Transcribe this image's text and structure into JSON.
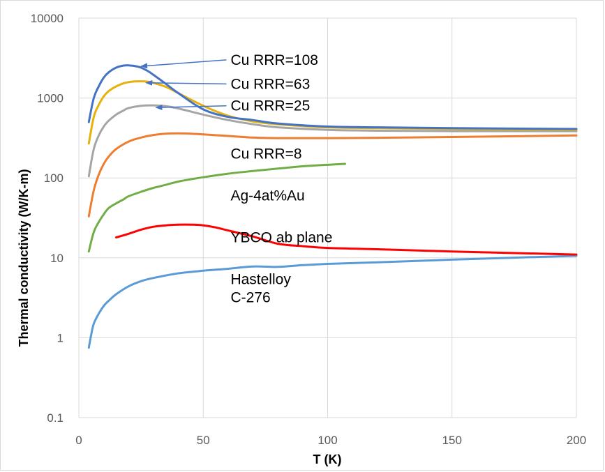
{
  "chart_data": {
    "type": "line",
    "title": "",
    "xlabel": "T (K)",
    "ylabel": "Thermal conductivity (W/K-m)",
    "xlim": [
      0,
      200
    ],
    "ylim": [
      0.1,
      10000
    ],
    "yscale": "log",
    "grid": true,
    "legend": "none",
    "x_ticks": [
      0,
      50,
      100,
      150,
      200
    ],
    "x_tick_labels": [
      "0",
      "50",
      "100",
      "150",
      "200"
    ],
    "y_ticks": [
      0.1,
      1,
      10,
      100,
      1000,
      10000
    ],
    "y_tick_labels": [
      "0.1",
      "1",
      "10",
      "100",
      "1000",
      "10000"
    ],
    "series": [
      {
        "key": "cu108",
        "color": "#4472C4",
        "x": [
          4,
          6,
          8,
          10,
          12,
          15,
          18,
          20,
          22,
          25,
          28,
          30,
          35,
          40,
          50,
          60,
          70,
          80,
          100,
          120,
          150,
          200
        ],
        "y": [
          500,
          1000,
          1400,
          1800,
          2100,
          2400,
          2550,
          2560,
          2530,
          2400,
          2150,
          1950,
          1500,
          1150,
          720,
          580,
          530,
          480,
          440,
          430,
          420,
          410
        ]
      },
      {
        "key": "cu63",
        "color": "#E5B10A",
        "x": [
          4,
          6,
          8,
          10,
          12,
          15,
          18,
          20,
          22,
          25,
          28,
          30,
          35,
          40,
          50,
          60,
          70,
          80,
          100,
          120,
          150,
          200
        ],
        "y": [
          270,
          580,
          820,
          1050,
          1220,
          1400,
          1530,
          1580,
          1610,
          1620,
          1600,
          1550,
          1380,
          1150,
          800,
          600,
          510,
          470,
          430,
          420,
          410,
          400
        ]
      },
      {
        "key": "cu25",
        "color": "#A5A5A5",
        "x": [
          4,
          6,
          8,
          10,
          12,
          15,
          18,
          20,
          25,
          30,
          35,
          40,
          50,
          60,
          70,
          80,
          100,
          120,
          150,
          200
        ],
        "y": [
          105,
          230,
          340,
          440,
          520,
          620,
          700,
          750,
          800,
          810,
          790,
          740,
          620,
          530,
          470,
          430,
          400,
          390,
          385,
          385
        ]
      },
      {
        "key": "cu8",
        "color": "#ED7D31",
        "x": [
          4,
          6,
          8,
          10,
          12,
          15,
          20,
          25,
          30,
          35,
          40,
          45,
          50,
          60,
          70,
          80,
          100,
          120,
          150,
          200
        ],
        "y": [
          33,
          70,
          110,
          150,
          185,
          230,
          285,
          320,
          345,
          358,
          362,
          358,
          350,
          335,
          320,
          315,
          315,
          318,
          325,
          340
        ]
      },
      {
        "key": "ag4au",
        "color": "#70AD47",
        "x": [
          4,
          6,
          8,
          10,
          12,
          15,
          18,
          20,
          25,
          30,
          35,
          40,
          50,
          60,
          70,
          80,
          90,
          100,
          107
        ],
        "y": [
          12,
          21,
          28,
          35,
          42,
          48,
          54,
          59,
          67,
          75,
          82,
          90,
          102,
          113,
          122,
          131,
          140,
          146,
          150
        ]
      },
      {
        "key": "ybco",
        "color": "#FF0000",
        "x": [
          15,
          20,
          25,
          30,
          35,
          40,
          45,
          50,
          55,
          60,
          70,
          80,
          90,
          100,
          120,
          150,
          200
        ],
        "y": [
          18,
          20,
          22.5,
          24.5,
          25.5,
          26,
          26,
          25.5,
          24,
          22,
          18.5,
          15,
          14,
          13.3,
          12.8,
          12,
          11
        ]
      },
      {
        "key": "hastelloy",
        "color": "#5B9BD5",
        "x": [
          4,
          5,
          6,
          8,
          10,
          12,
          15,
          20,
          25,
          30,
          40,
          50,
          60,
          70,
          80,
          90,
          100,
          120,
          150,
          200
        ],
        "y": [
          0.75,
          1.1,
          1.5,
          2.0,
          2.5,
          2.9,
          3.5,
          4.4,
          5.1,
          5.6,
          6.4,
          6.9,
          7.3,
          7.8,
          7.7,
          8.1,
          8.4,
          8.8,
          9.5,
          10.6
        ]
      }
    ],
    "annotations": [
      {
        "key": "cu108",
        "text": "Cu RRR=108",
        "x": 61,
        "y": 3000,
        "arrow_to": [
          25,
          2500
        ]
      },
      {
        "key": "cu63",
        "text": "Cu RRR=63",
        "x": 61,
        "y": 1500,
        "arrow_to": [
          27,
          1550
        ]
      },
      {
        "key": "cu25",
        "text": "Cu RRR=25",
        "x": 61,
        "y": 800,
        "arrow_to": [
          31,
          760
        ]
      },
      {
        "key": "cu8",
        "text": "Cu RRR=8",
        "x": 61,
        "y": 200,
        "arrow_to": null
      },
      {
        "key": "ag4au",
        "text": "Ag-4at%Au",
        "x": 61,
        "y": 60,
        "arrow_to": null
      },
      {
        "key": "ybco",
        "text": "YBCO ab plane",
        "x": 61,
        "y": 18,
        "arrow_to": null
      },
      {
        "key": "hastelloy1",
        "text": "Hastelloy",
        "x": 61,
        "y": 5.4,
        "arrow_to": null
      },
      {
        "key": "hastelloy2",
        "text": "C-276",
        "x": 61,
        "y": 3.2,
        "arrow_to": null
      }
    ]
  }
}
